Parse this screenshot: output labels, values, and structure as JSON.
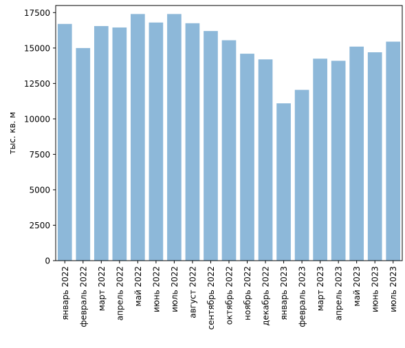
{
  "chart_data": {
    "type": "bar",
    "title": "",
    "xlabel": "",
    "ylabel": "тыс. кв. м",
    "ylim": [
      0,
      18000
    ],
    "yticks": [
      0,
      2500,
      5000,
      7500,
      10000,
      12500,
      15000,
      17500
    ],
    "grid": false,
    "legend": "none",
    "bar_color": "#8db8d9",
    "categories": [
      "январь 2022",
      "февраль 2022",
      "март 2022",
      "апрель 2022",
      "май 2022",
      "июнь 2022",
      "июль 2022",
      "август 2022",
      "сентябрь 2022",
      "октябрь 2022",
      "ноябрь 2022",
      "декабрь 2022",
      "январь 2023",
      "февраль 2023",
      "март 2023",
      "апрель 2023",
      "май 2023",
      "июнь 2023",
      "июль 2023"
    ],
    "values": [
      16700,
      15000,
      16550,
      16450,
      17400,
      16800,
      17400,
      16750,
      16200,
      15550,
      14600,
      14200,
      11100,
      12050,
      14250,
      14100,
      15100,
      14700,
      15450
    ]
  }
}
